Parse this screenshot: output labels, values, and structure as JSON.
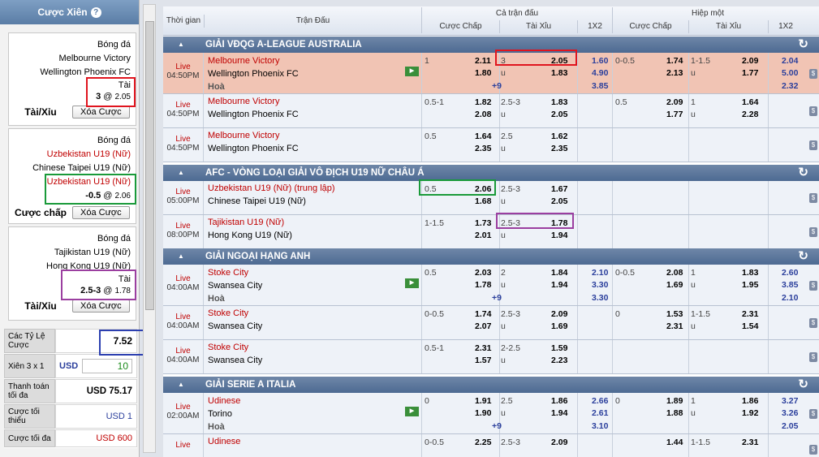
{
  "slip": {
    "title": "Cược Xiên",
    "help_icon": "?",
    "bets": [
      {
        "sport": "Bóng đá",
        "home": "Melbourne Victory",
        "away": "Wellington Phoenix FC",
        "pick": "Tài",
        "line": "3",
        "odds": "2.05",
        "type": "Tài/Xỉu",
        "remove": "Xóa Cược"
      },
      {
        "sport": "Bóng đá",
        "home": "Uzbekistan U19 (Nữ)",
        "away": "Chinese Taipei U19 (Nữ)",
        "pick": "Uzbekistan U19 (Nữ)",
        "line": "-0.5",
        "odds": "2.06",
        "type": "Cược chấp",
        "remove": "Xóa Cược"
      },
      {
        "sport": "Bóng đá",
        "home": "Tajikistan U19 (Nữ)",
        "away": "Hong Kong U19 (Nữ)",
        "pick": "Tài",
        "line": "2.5-3",
        "odds": "1.78",
        "type": "Tài/Xỉu",
        "remove": "Xóa Cược"
      }
    ],
    "summary": {
      "rate_label": "Các Tỷ Lệ Cược",
      "rate_value": "7.52",
      "combo_label": "Xiên 3 x 1",
      "currency": "USD",
      "stake": "10",
      "payout_label": "Thanh toán tối đa",
      "payout_value": "USD 75.17",
      "min_label": "Cược tối thiểu",
      "min_value": "USD 1",
      "max_label": "Cược tối đa",
      "max_value": "USD 600"
    }
  },
  "table": {
    "headers": {
      "time": "Thời gian",
      "match": "Trận Đấu",
      "full": "Cả trận đấu",
      "half": "Hiệp một",
      "handicap": "Cược Chấp",
      "ou": "Tài Xỉu",
      "x12": "1X2"
    },
    "leagues": [
      {
        "name": "GIẢI VĐQG A-LEAGUE AUSTRALIA",
        "rows": [
          {
            "live": "Live",
            "time": "04:50PM",
            "home": "Melbourne Victory",
            "away": "Wellington Phoenix FC",
            "draw": "Hoà",
            "hl": true,
            "stream": "▶",
            "fh": [
              "1",
              "2.11",
              "",
              "1.80"
            ],
            "fou": [
              "3",
              "2.05",
              "u",
              "1.83"
            ],
            "fx": [
              "1.60",
              "4.90",
              "3.85"
            ],
            "fdraw_plus": "+9",
            "hh": [
              "0-0.5",
              "1.74",
              "",
              "2.13"
            ],
            "hou": [
              "1-1.5",
              "2.09",
              "u",
              "1.77"
            ],
            "hx": [
              "2.04",
              "5.00",
              "2.32"
            ]
          },
          {
            "live": "Live",
            "time": "04:50PM",
            "home": "Melbourne Victory",
            "away": "Wellington Phoenix FC",
            "fh": [
              "0.5-1",
              "1.82",
              "",
              "2.08"
            ],
            "fou": [
              "2.5-3",
              "1.83",
              "u",
              "2.05"
            ],
            "hh": [
              "0.5",
              "2.09",
              "",
              "1.77"
            ],
            "hou": [
              "1",
              "1.64",
              "u",
              "2.28"
            ]
          },
          {
            "live": "Live",
            "time": "04:50PM",
            "home": "Melbourne Victory",
            "away": "Wellington Phoenix FC",
            "fh": [
              "0.5",
              "1.64",
              "",
              "2.35"
            ],
            "fou": [
              "2.5",
              "1.62",
              "u",
              "2.35"
            ]
          }
        ]
      },
      {
        "name": "AFC - VÒNG LOẠI GIẢI VÔ ĐỊCH U19 NỮ CHÂU Á",
        "rows": [
          {
            "live": "Live",
            "time": "05:00PM",
            "home": "Uzbekistan U19 (Nữ) (trung lập)",
            "away": "Chinese Taipei U19 (Nữ)",
            "fh": [
              "0.5",
              "2.06",
              "",
              "1.68"
            ],
            "fou": [
              "2.5-3",
              "1.67",
              "u",
              "2.05"
            ]
          },
          {
            "live": "Live",
            "time": "08:00PM",
            "home": "Tajikistan U19 (Nữ)",
            "away": "Hong Kong U19 (Nữ)",
            "fh": [
              "1-1.5",
              "1.73",
              "",
              "2.01"
            ],
            "fou": [
              "2.5-3",
              "1.78",
              "u",
              "1.94"
            ]
          }
        ]
      },
      {
        "name": "GIẢI NGOẠI HẠNG ANH",
        "rows": [
          {
            "live": "Live",
            "time": "04:00AM",
            "home": "Stoke City",
            "away": "Swansea City",
            "draw": "Hoà",
            "stream": "▶",
            "fh": [
              "0.5",
              "2.03",
              "",
              "1.78"
            ],
            "fou": [
              "2",
              "1.84",
              "u",
              "1.94"
            ],
            "fx": [
              "2.10",
              "3.30",
              "3.30"
            ],
            "fdraw_plus": "+9",
            "hh": [
              "0-0.5",
              "2.08",
              "",
              "1.69"
            ],
            "hou": [
              "1",
              "1.83",
              "u",
              "1.95"
            ],
            "hx": [
              "2.60",
              "3.85",
              "2.10"
            ]
          },
          {
            "live": "Live",
            "time": "04:00AM",
            "home": "Stoke City",
            "away": "Swansea City",
            "fh": [
              "0-0.5",
              "1.74",
              "",
              "2.07"
            ],
            "fou": [
              "2.5-3",
              "2.09",
              "u",
              "1.69"
            ],
            "hh": [
              "0",
              "1.53",
              "",
              "2.31"
            ],
            "hou": [
              "1-1.5",
              "2.31",
              "u",
              "1.54"
            ]
          },
          {
            "live": "Live",
            "time": "04:00AM",
            "home": "Stoke City",
            "away": "Swansea City",
            "fh": [
              "0.5-1",
              "2.31",
              "",
              "1.57"
            ],
            "fou": [
              "2-2.5",
              "1.59",
              "u",
              "2.23"
            ]
          }
        ]
      },
      {
        "name": "GIẢI SERIE A ITALIA",
        "rows": [
          {
            "live": "Live",
            "time": "02:00AM",
            "home": "Udinese",
            "away": "Torino",
            "draw": "Hoà",
            "stream": "▶",
            "fh": [
              "0",
              "1.91",
              "",
              "1.90"
            ],
            "fou": [
              "2.5",
              "1.86",
              "u",
              "1.94"
            ],
            "fx": [
              "2.66",
              "2.61",
              "3.10"
            ],
            "fdraw_plus": "+9",
            "hh": [
              "0",
              "1.89",
              "",
              "1.88"
            ],
            "hou": [
              "1",
              "1.86",
              "u",
              "1.92"
            ],
            "hx": [
              "3.27",
              "3.26",
              "2.05"
            ]
          },
          {
            "live": "Live",
            "time": "",
            "home": "Udinese",
            "away": "",
            "fh": [
              "0-0.5",
              "2.25",
              "",
              ""
            ],
            "fou": [
              "2.5-3",
              "2.09",
              "",
              ""
            ],
            "hh": [
              "",
              "1.44",
              "",
              ""
            ],
            "hou": [
              "1-1.5",
              "2.31",
              "",
              ""
            ]
          }
        ]
      }
    ]
  },
  "colors": {
    "highlight_red": "#e0141e",
    "highlight_green": "#1a9a3a",
    "highlight_purple": "#9b3fa0",
    "highlight_blue": "#2c3fb0"
  }
}
